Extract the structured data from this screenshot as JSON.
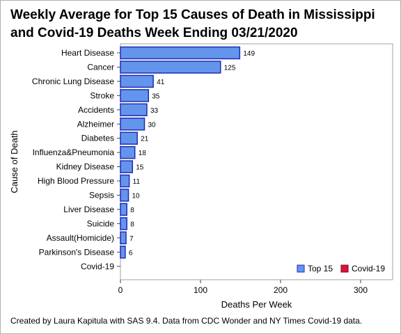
{
  "title": "Weekly Average for Top 15 Causes of Death in Mississippi and Covid-19 Deaths Week Ending 03/21/2020",
  "footnote": "Created by Laura Kapitula with SAS 9.4. Data from CDC Wonder and NY Times Covid-19 data.",
  "chart_data": {
    "type": "bar",
    "orientation": "horizontal",
    "title": "Weekly Average for Top 15 Causes of Death in Mississippi and Covid-19 Deaths Week Ending 03/21/2020",
    "xlabel": "Deaths Per Week",
    "ylabel": "Cause of Death",
    "xlim": [
      0,
      340
    ],
    "xticks": [
      0,
      100,
      200,
      300
    ],
    "categories": [
      "Heart Disease",
      "Cancer",
      "Chronic Lung Disease",
      "Stroke",
      "Accidents",
      "Alzheimer",
      "Diabetes",
      "Influenza&Pneumonia",
      "Kidney Disease",
      "High Blood Pressure",
      "Sepsis",
      "Liver Disease",
      "Suicide",
      "Assault(Homicide)",
      "Parkinson's Disease",
      "Covid-19"
    ],
    "series": [
      {
        "name": "Top 15",
        "color": "#6495ED",
        "edge": "#1F2BB5",
        "values": [
          149,
          125,
          41,
          35,
          33,
          30,
          21,
          18,
          15,
          11,
          10,
          8,
          8,
          7,
          6,
          null
        ]
      },
      {
        "name": "Covid-19",
        "color": "#DC143C",
        "edge": "#7A0010",
        "values": [
          null,
          null,
          null,
          null,
          null,
          null,
          null,
          null,
          null,
          null,
          null,
          null,
          null,
          null,
          null,
          0
        ]
      }
    ],
    "data_labels": [
      "149",
      "125",
      "41",
      "35",
      "33",
      "30",
      "21",
      "18",
      "15",
      "11",
      "10",
      "8",
      "8",
      "7",
      "6",
      ""
    ],
    "legend": {
      "position": "bottom-right",
      "items": [
        "Top 15",
        "Covid-19"
      ]
    },
    "grid": false
  }
}
